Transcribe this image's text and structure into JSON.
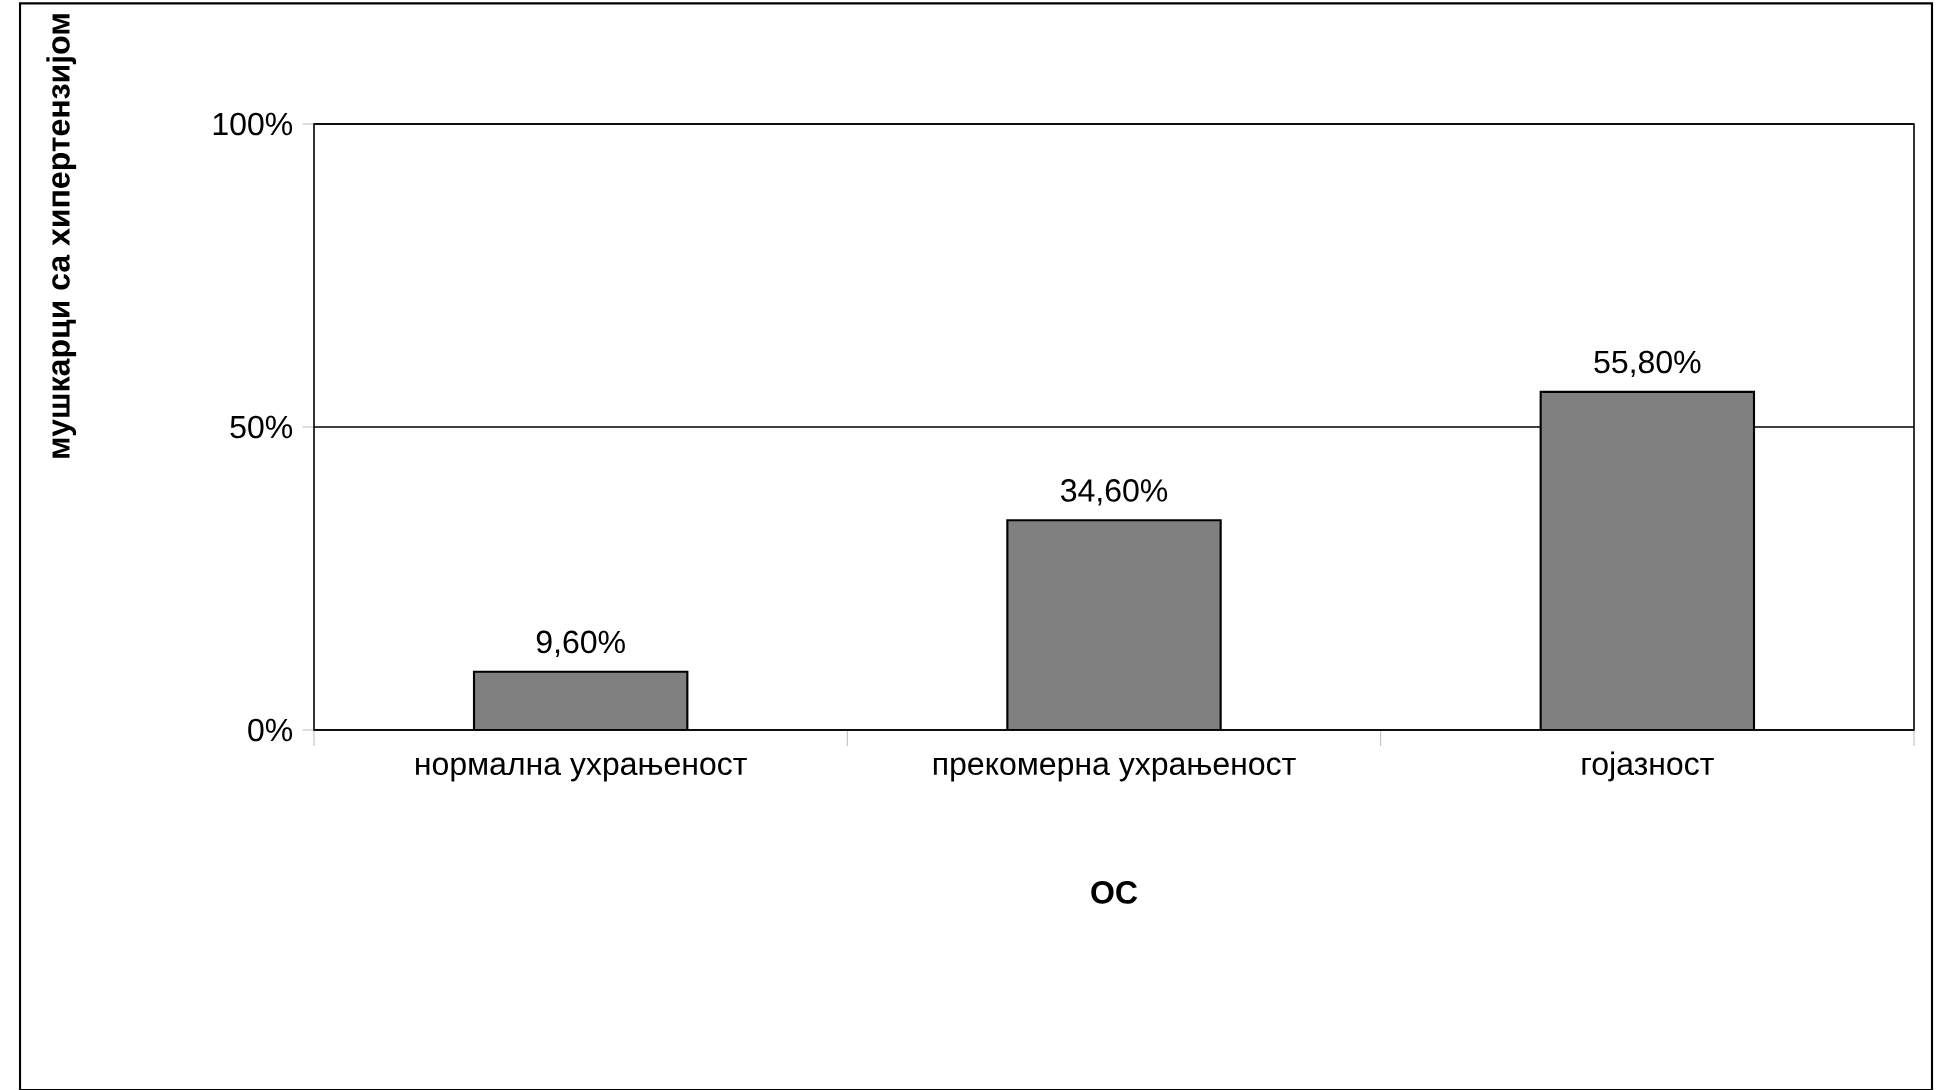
{
  "chart_data": {
    "type": "bar",
    "xlabel": "ОС",
    "ylabel": "мушкарци са хипертензијом",
    "categories": [
      "нормална ухрањеност",
      "прекомерна ухрањеност",
      "гојазност"
    ],
    "values": [
      9.6,
      34.6,
      55.8
    ],
    "value_labels": [
      "9,60%",
      "34,60%",
      "55,80%"
    ],
    "color": "#808080",
    "ylim": [
      0,
      100
    ],
    "yticks": [
      {
        "value": 0,
        "label": "0%"
      },
      {
        "value": 50,
        "label": "50%"
      },
      {
        "value": 100,
        "label": "100%"
      }
    ],
    "grid": "y"
  }
}
